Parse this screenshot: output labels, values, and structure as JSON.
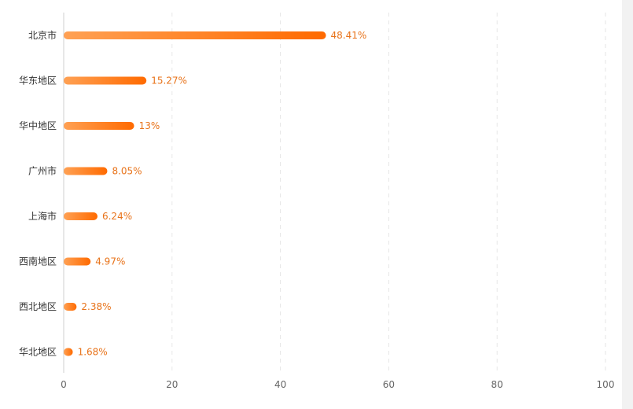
{
  "chart_data": {
    "type": "bar",
    "orientation": "horizontal",
    "categories": [
      "北京市",
      "华东地区",
      "华中地区",
      "广州市",
      "上海市",
      "西南地区",
      "西北地区",
      "华北地区"
    ],
    "values": [
      48.41,
      15.27,
      13,
      8.05,
      6.24,
      4.97,
      2.38,
      1.68
    ],
    "value_labels": [
      "48.41%",
      "15.27%",
      "13%",
      "8.05%",
      "6.24%",
      "4.97%",
      "2.38%",
      "1.68%"
    ],
    "xlim": [
      0,
      100
    ],
    "xticks": [
      0,
      20,
      40,
      60,
      80,
      100
    ],
    "grid": true,
    "title": "",
    "xlabel": "",
    "ylabel": "",
    "colors": {
      "bar_start": "#ffa154",
      "bar_end": "#ff6a00",
      "value_label": "#e8731a"
    }
  }
}
